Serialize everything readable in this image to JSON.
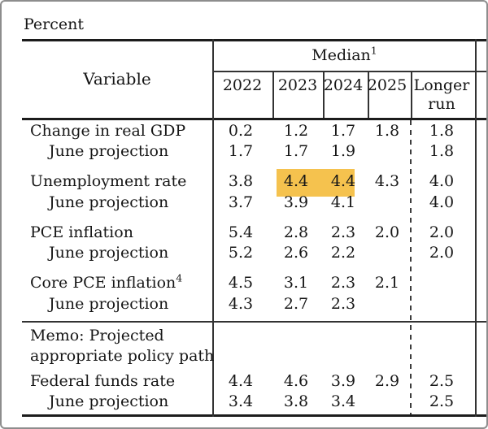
{
  "page": {
    "unit_label": "Percent"
  },
  "table": {
    "corner_header": "Variable",
    "group_header": {
      "label": "Median",
      "footnote": "1"
    },
    "columns": [
      "2022",
      "2023",
      "2024",
      "2025"
    ],
    "longer_run_column": "Longer run",
    "rows": [
      {
        "label": "Change in real GDP",
        "values": [
          "0.2",
          "1.2",
          "1.7",
          "1.8",
          "1.8"
        ]
      },
      {
        "label": "June projection",
        "indent": true,
        "values": [
          "1.7",
          "1.7",
          "1.9",
          "",
          "1.8"
        ]
      },
      {
        "label": "Unemployment rate",
        "values": [
          "3.8",
          "4.4",
          "4.4",
          "4.3",
          "4.0"
        ],
        "highlight_cells": [
          1,
          2
        ]
      },
      {
        "label": "June projection",
        "indent": true,
        "values": [
          "3.7",
          "3.9",
          "4.1",
          "",
          "4.0"
        ]
      },
      {
        "label": "PCE inflation",
        "values": [
          "5.4",
          "2.8",
          "2.3",
          "2.0",
          "2.0"
        ]
      },
      {
        "label": "June projection",
        "indent": true,
        "values": [
          "5.2",
          "2.6",
          "2.2",
          "",
          "2.0"
        ]
      },
      {
        "label": "Core PCE inflation",
        "footnote": "4",
        "values": [
          "4.5",
          "3.1",
          "2.3",
          "2.1",
          ""
        ]
      },
      {
        "label": "June projection",
        "indent": true,
        "values": [
          "4.3",
          "2.7",
          "2.3",
          "",
          ""
        ]
      },
      {
        "label": "Federal funds rate",
        "values": [
          "4.4",
          "4.6",
          "3.9",
          "2.9",
          "2.5"
        ]
      },
      {
        "label": "June projection",
        "indent": true,
        "values": [
          "3.4",
          "3.8",
          "3.4",
          "",
          "2.5"
        ]
      }
    ],
    "memo": {
      "line1": "Memo: Projected",
      "line2": "appropriate policy path"
    }
  },
  "colors": {
    "highlight": "#f5c24e"
  }
}
